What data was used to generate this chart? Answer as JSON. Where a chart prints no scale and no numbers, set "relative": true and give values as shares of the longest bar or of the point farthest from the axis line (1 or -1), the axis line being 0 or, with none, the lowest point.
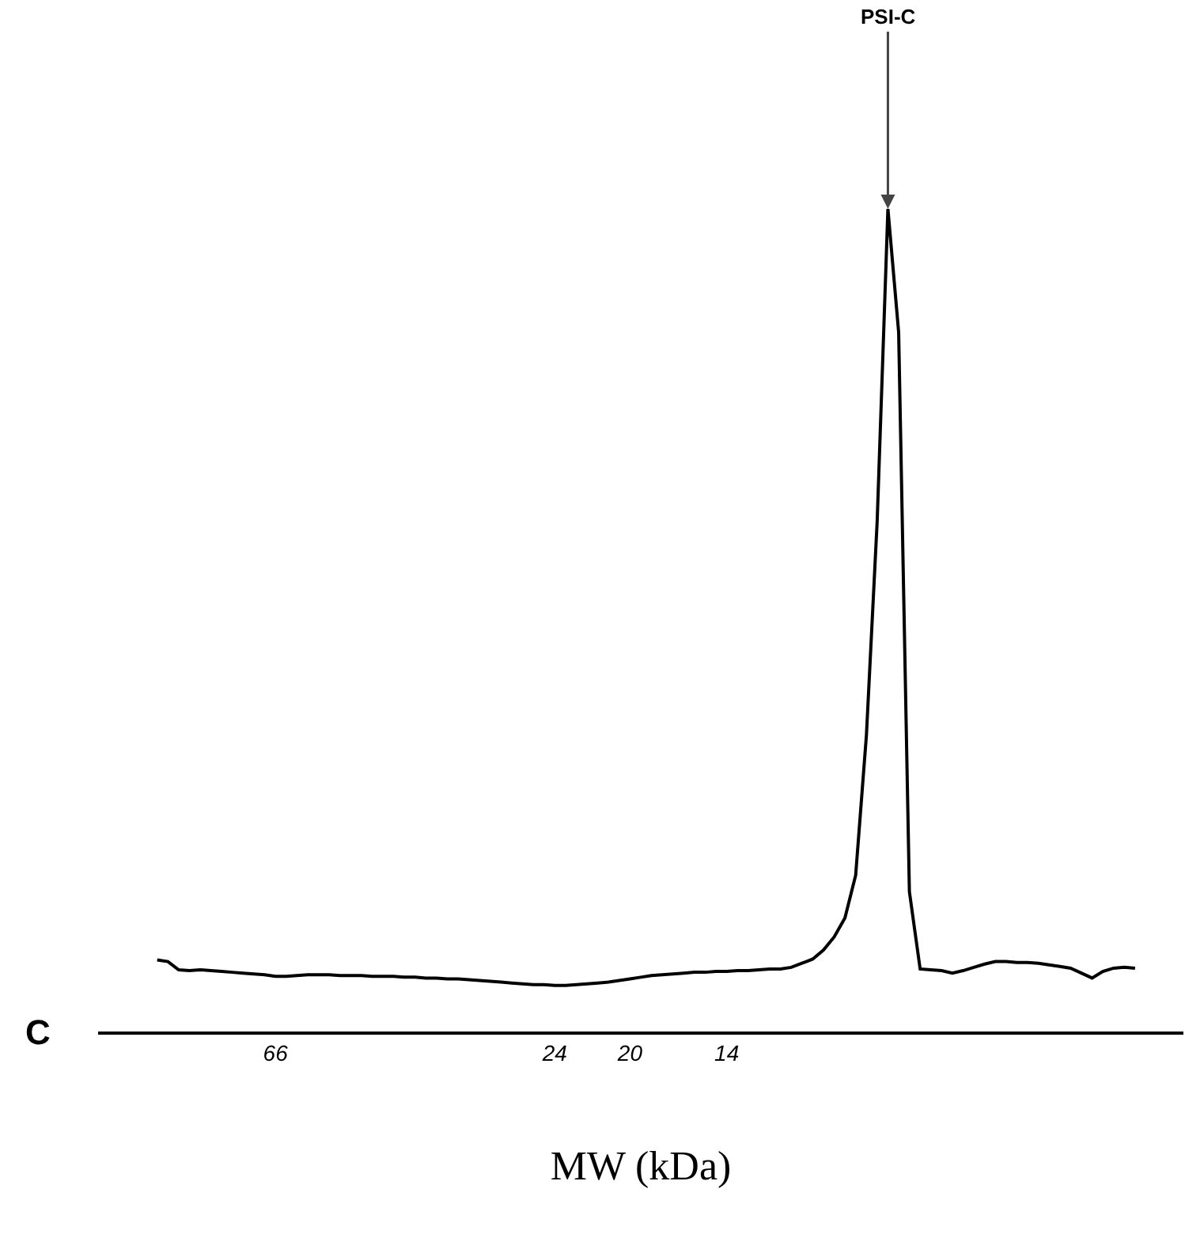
{
  "chart_data": {
    "type": "line",
    "relative": true,
    "xlabel": "MW (kDa)",
    "categories": [
      null,
      null,
      null,
      null,
      null,
      null,
      null,
      null,
      null,
      null,
      null,
      null,
      null,
      null,
      null,
      null,
      "66",
      null,
      null,
      null,
      null,
      null,
      null,
      null,
      null,
      null,
      null,
      null,
      null,
      null,
      null,
      null,
      null,
      null,
      null,
      null,
      null,
      null,
      null,
      null,
      null,
      null,
      "24",
      null,
      null,
      null,
      null,
      null,
      null,
      "20",
      null,
      null,
      null,
      null,
      null,
      null,
      null,
      null,
      "14",
      null,
      null,
      null,
      null,
      null,
      null,
      null,
      null,
      null,
      null,
      null,
      null,
      null,
      null,
      null,
      null,
      null,
      null,
      null,
      null,
      null,
      null,
      null,
      null,
      null,
      null,
      null,
      null,
      null,
      null,
      null,
      null,
      null,
      null,
      null,
      null,
      null,
      null,
      null,
      null,
      null,
      null
    ],
    "grid": false,
    "marker": "none",
    "line_style": "solid",
    "annotations": [
      {
        "text": "PSI-C",
        "y": 1
      },
      "C"
    ],
    "series": [
      {
        "color": "#000000",
        "values": [
          null,
          null,
          null,
          null,
          null,
          0.087,
          0.085,
          0.075,
          0.074,
          0.075,
          0.074,
          0.073,
          0.072,
          0.071,
          0.07,
          0.069,
          0.067,
          0.067,
          0.068,
          0.069,
          0.069,
          0.069,
          0.068,
          0.068,
          0.068,
          0.067,
          0.067,
          0.067,
          0.066,
          0.066,
          0.065,
          0.065,
          0.064,
          0.064,
          0.063,
          0.062,
          0.061,
          0.06,
          0.059,
          0.058,
          0.057,
          0.057,
          0.056,
          0.056,
          0.057,
          0.058,
          0.059,
          0.06,
          0.062,
          0.064,
          0.066,
          0.068,
          0.069,
          0.07,
          0.071,
          0.072,
          0.072,
          0.073,
          0.073,
          0.074,
          0.074,
          0.075,
          0.076,
          0.076,
          0.078,
          0.083,
          0.088,
          0.099,
          0.115,
          0.138,
          0.19,
          0.36,
          0.62,
          1,
          0.85,
          0.17,
          0.076,
          0.075,
          0.074,
          0.071,
          0.074,
          0.078,
          0.082,
          0.085,
          0.085,
          0.084,
          0.084,
          0.083,
          0.081,
          0.079,
          0.077,
          0.071,
          0.065,
          0.073,
          0.077,
          0.078,
          0.077,
          null,
          null,
          null,
          null
        ]
      }
    ]
  }
}
